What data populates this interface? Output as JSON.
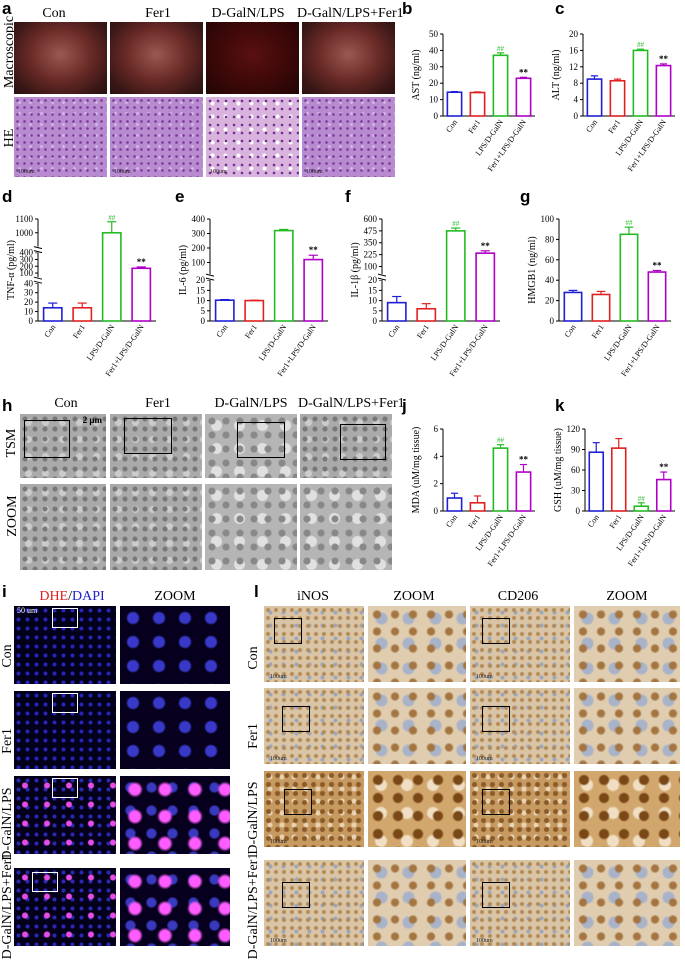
{
  "panel_letters": {
    "a": "a",
    "b": "b",
    "c": "c",
    "d": "d",
    "e": "e",
    "f": "f",
    "g": "g",
    "h": "h",
    "i": "i",
    "j": "j",
    "k": "k",
    "l": "l"
  },
  "panel_a": {
    "columns": [
      "Con",
      "Fer1",
      "D-GalN/LPS",
      "D-GalN/LPS+Fer1"
    ],
    "rows": [
      "Macroscopic",
      "HE"
    ],
    "scalebar": "100um"
  },
  "panel_h": {
    "columns": [
      "Con",
      "Fer1",
      "D-GalN/LPS",
      "D-GalN/LPS+Fer1"
    ],
    "rows": [
      "TSM",
      "ZOOM"
    ],
    "scalebar": "2 μm"
  },
  "panel_i": {
    "title_dhe": "DHE",
    "title_sep": "/",
    "title_dapi": "DAPI",
    "zoom_title": "ZOOM",
    "rows": [
      "Con",
      "Fer1",
      "D-GalN/LPS",
      "D-GalN/LPS+Fer1"
    ],
    "scalebar": "50 um"
  },
  "panel_l": {
    "columns": [
      "iNOS",
      "ZOOM",
      "CD206",
      "ZOOM"
    ],
    "rows": [
      "Con",
      "Fer1",
      "D-GalN/LPS",
      "D-GalN/LPS+Fer1"
    ],
    "scalebar": "100um"
  },
  "colors": {
    "con": "#1f1fd6",
    "fer1": "#e02020",
    "lps": "#22bb22",
    "lpsfer": "#b000c8",
    "dhe_red": "#e02020",
    "dapi_blue": "#2020c8"
  },
  "chart_data": [
    {
      "id": "b",
      "type": "bar",
      "categories": [
        "Con",
        "Fer1",
        "LPS/D-GalN",
        "Fer1+LPS/D-GalN"
      ],
      "values": [
        14.5,
        14.3,
        37.0,
        23.0
      ],
      "errors": [
        0.4,
        0.4,
        1.5,
        0.6
      ],
      "ylabel": "AST (ng/ml)",
      "ylim": [
        0,
        50
      ],
      "ticks": [
        "0",
        "10",
        "20",
        "30",
        "40",
        "50"
      ],
      "annotations": [
        "",
        "",
        "##",
        "**"
      ]
    },
    {
      "id": "c",
      "type": "bar",
      "categories": [
        "Con",
        "Fer1",
        "LPS/D-GalN",
        "Fer1+LPS/D-GalN"
      ],
      "values": [
        9.0,
        8.6,
        16.0,
        12.3
      ],
      "errors": [
        0.8,
        0.4,
        0.3,
        0.4
      ],
      "ylabel": "ALT (ng/ml)",
      "ylim": [
        0,
        20
      ],
      "ticks": [
        "0",
        "4",
        "8",
        "12",
        "16",
        "20"
      ],
      "annotations": [
        "",
        "",
        "##",
        "**"
      ]
    },
    {
      "id": "d",
      "type": "bar",
      "broken_axis": true,
      "categories": [
        "Con",
        "Fer1",
        "LPS/D-GalN",
        "Fer1+LPS/D-GalN"
      ],
      "values": [
        14,
        14,
        1000,
        170
      ],
      "errors": [
        5,
        5,
        80,
        20
      ],
      "ylabel": "TNF-α (pg/ml)",
      "ticks": [
        "0",
        "10",
        "20",
        "30",
        "40",
        "100",
        "200",
        "300",
        "400",
        "1000",
        "1100"
      ],
      "annotations": [
        "",
        "",
        "##",
        "**"
      ]
    },
    {
      "id": "e",
      "type": "bar",
      "broken_axis": true,
      "categories": [
        "Con",
        "Fer1",
        "LPS/D-GalN",
        "Fer1+LPS/D-GalN"
      ],
      "values": [
        10.2,
        10.0,
        320,
        120
      ],
      "errors": [
        0.3,
        0.2,
        8,
        30
      ],
      "ylabel": "IL-6 (pg/ml)",
      "ticks": [
        "0",
        "5",
        "10",
        "15",
        "20",
        "100",
        "200",
        "300",
        "400"
      ],
      "annotations": [
        "",
        "",
        "",
        "**"
      ]
    },
    {
      "id": "f",
      "type": "bar",
      "broken_axis": true,
      "categories": [
        "Con",
        "Fer1",
        "LPS/D-GalN",
        "Fer1+LPS/D-GalN"
      ],
      "values": [
        9,
        6,
        475,
        240
      ],
      "errors": [
        3,
        2.5,
        30,
        25
      ],
      "ylabel": "IL-1β (pg/ml)",
      "ticks": [
        "0",
        "5",
        "10",
        "15",
        "20",
        "100",
        "225",
        "350",
        "475",
        "600"
      ],
      "annotations": [
        "",
        "",
        "##",
        "**"
      ]
    },
    {
      "id": "g",
      "type": "bar",
      "categories": [
        "Con",
        "Fer1",
        "LPS/D-GalN",
        "Fer1+LPS/D-GalN"
      ],
      "values": [
        28,
        26,
        85,
        48
      ],
      "errors": [
        2,
        3,
        7,
        1.5
      ],
      "ylabel": "HMGB1 (ng/ml)",
      "ylim": [
        0,
        100
      ],
      "ticks": [
        "0",
        "20",
        "40",
        "60",
        "80",
        "100"
      ],
      "annotations": [
        "",
        "",
        "##",
        "**"
      ]
    },
    {
      "id": "j",
      "type": "bar",
      "categories": [
        "Con",
        "Fer1",
        "LPS/D-GalN",
        "Fer1+LPS/D-GalN"
      ],
      "values": [
        0.95,
        0.6,
        4.6,
        2.85
      ],
      "errors": [
        0.35,
        0.5,
        0.25,
        0.55
      ],
      "ylabel": "MDA (uM/mg tissue)",
      "ylim": [
        0,
        6
      ],
      "ticks": [
        "0",
        "2",
        "4",
        "6"
      ],
      "annotations": [
        "",
        "",
        "##",
        "**"
      ]
    },
    {
      "id": "k",
      "type": "bar",
      "categories": [
        "Con",
        "Fer1",
        "LPS/D-GalN",
        "Fer1+LPS/D-GalN"
      ],
      "values": [
        86,
        92,
        7,
        46
      ],
      "errors": [
        14,
        14,
        5,
        11
      ],
      "ylabel": "GSH (uM/mg tissue)",
      "ylim": [
        0,
        120
      ],
      "ticks": [
        "0",
        "30",
        "60",
        "90",
        "120"
      ],
      "annotations": [
        "",
        "",
        "##",
        "**"
      ]
    }
  ]
}
